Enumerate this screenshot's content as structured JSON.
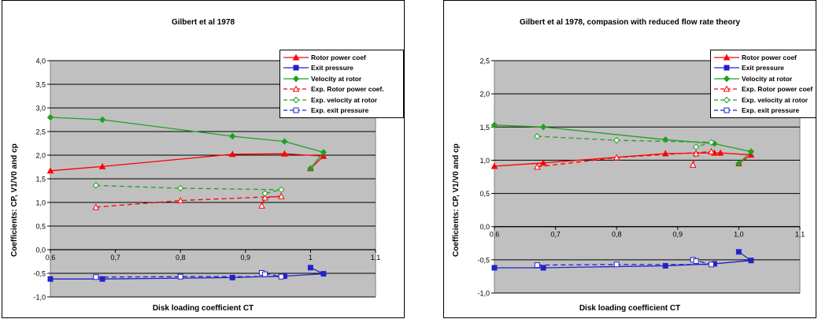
{
  "chart_data": [
    {
      "type": "line",
      "title": "Gilbert et al 1978",
      "xlabel": "Disk loading coefficient CT",
      "ylabel": "Coefficients: CP, V1/V0 and cp",
      "xlim": [
        0.6,
        1.1
      ],
      "ylim": [
        -1.0,
        4.0
      ],
      "xticks": [
        "0,6",
        "0,7",
        "0,8",
        "0,9",
        "1",
        "1,1"
      ],
      "yticks": [
        "-1,0",
        "-0,5",
        "0,0",
        "0,5",
        "1,0",
        "1,5",
        "2,0",
        "2,5",
        "3,0",
        "3,5",
        "4,0"
      ],
      "grid": "horizontal",
      "legend_position": "top-right",
      "background": "#c0c0c0",
      "series": [
        {
          "name": "Rotor power coef",
          "color": "#ff0000",
          "marker": "triangle",
          "fill": true,
          "dash": false,
          "x": [
            0.6,
            0.68,
            0.88,
            0.96,
            1.02,
            1.0
          ],
          "y": [
            1.67,
            1.76,
            2.02,
            2.03,
            1.98,
            1.72
          ]
        },
        {
          "name": "Exit pressure",
          "color": "#2222cc",
          "marker": "square",
          "fill": true,
          "dash": false,
          "x": [
            0.6,
            0.68,
            0.88,
            0.96,
            1.02,
            1.0
          ],
          "y": [
            -0.62,
            -0.62,
            -0.59,
            -0.56,
            -0.51,
            -0.38
          ]
        },
        {
          "name": "Velocity at rotor",
          "color": "#22a022",
          "marker": "diamond",
          "fill": true,
          "dash": false,
          "x": [
            0.6,
            0.68,
            0.88,
            0.96,
            1.02,
            1.0
          ],
          "y": [
            2.8,
            2.75,
            2.4,
            2.29,
            2.06,
            1.72
          ]
        },
        {
          "name": "Exp. Rotor power coef.",
          "color": "#ff0000",
          "marker": "triangle",
          "fill": false,
          "dash": true,
          "x": [
            0.67,
            0.8,
            0.955,
            0.93,
            0.925
          ],
          "y": [
            0.9,
            1.04,
            1.13,
            1.1,
            0.93
          ]
        },
        {
          "name": "Exp. velocity at rotor",
          "color": "#22a022",
          "marker": "diamond",
          "fill": false,
          "dash": true,
          "x": [
            0.67,
            0.8,
            0.955,
            0.93
          ],
          "y": [
            1.36,
            1.3,
            1.27,
            1.19
          ]
        },
        {
          "name": "Exp. exit pressure",
          "color": "#2222cc",
          "marker": "square",
          "fill": false,
          "dash": true,
          "x": [
            0.67,
            0.8,
            0.955,
            0.925,
            0.93
          ],
          "y": [
            -0.58,
            -0.57,
            -0.57,
            -0.49,
            -0.52
          ]
        }
      ]
    },
    {
      "type": "line",
      "title": "Gilbert et al 1978, compasion with reduced flow rate theory",
      "xlabel": "Disk loading coefficient CT",
      "ylabel": "Coefficients: CP, V1/V0 and cp",
      "xlim": [
        0.6,
        1.1
      ],
      "ylim": [
        -1.0,
        2.5
      ],
      "xticks": [
        "0,6",
        "0,7",
        "0,8",
        "0,9",
        "1,0",
        "1,1"
      ],
      "yticks": [
        "-1,0",
        "-0,5",
        "0,0",
        "0,5",
        "1,0",
        "1,5",
        "2,0",
        "2,5"
      ],
      "grid": "horizontal",
      "legend_position": "top-right",
      "background": "#c0c0c0",
      "series": [
        {
          "name": "Rotor power coef",
          "color": "#ff0000",
          "marker": "triangle",
          "fill": true,
          "dash": false,
          "x": [
            0.6,
            0.68,
            0.88,
            0.96,
            0.97,
            1.02,
            1.0
          ],
          "y": [
            0.91,
            0.96,
            1.1,
            1.11,
            1.11,
            1.08,
            0.95
          ]
        },
        {
          "name": "Exit pressure",
          "color": "#2222cc",
          "marker": "square",
          "fill": true,
          "dash": false,
          "x": [
            0.6,
            0.68,
            0.88,
            0.96,
            1.02,
            1.0
          ],
          "y": [
            -0.62,
            -0.62,
            -0.59,
            -0.56,
            -0.51,
            -0.38
          ]
        },
        {
          "name": "Velocity at rotor",
          "color": "#22a022",
          "marker": "diamond",
          "fill": true,
          "dash": false,
          "x": [
            0.6,
            0.68,
            0.88,
            0.96,
            1.02,
            1.0
          ],
          "y": [
            1.53,
            1.5,
            1.31,
            1.25,
            1.13,
            0.95
          ]
        },
        {
          "name": "Exp. Rotor power coef",
          "color": "#ff0000",
          "marker": "triangle",
          "fill": false,
          "dash": true,
          "x": [
            0.67,
            0.8,
            0.955,
            0.93,
            0.925
          ],
          "y": [
            0.9,
            1.04,
            1.13,
            1.1,
            0.93
          ]
        },
        {
          "name": "Exp. velocity at rotor",
          "color": "#22a022",
          "marker": "diamond",
          "fill": false,
          "dash": true,
          "x": [
            0.67,
            0.8,
            0.955,
            0.93
          ],
          "y": [
            1.36,
            1.3,
            1.27,
            1.2
          ]
        },
        {
          "name": "Exp. exit pressure",
          "color": "#2222cc",
          "marker": "square",
          "fill": false,
          "dash": true,
          "x": [
            0.67,
            0.8,
            0.955,
            0.925,
            0.93
          ],
          "y": [
            -0.58,
            -0.57,
            -0.57,
            -0.5,
            -0.52
          ]
        }
      ]
    }
  ]
}
